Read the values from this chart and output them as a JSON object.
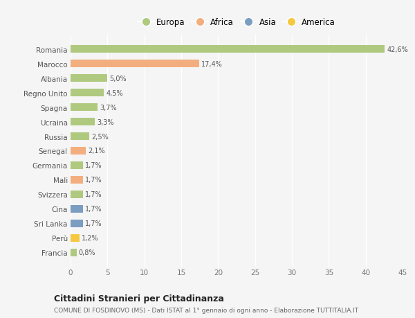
{
  "countries": [
    "Romania",
    "Marocco",
    "Albania",
    "Regno Unito",
    "Spagna",
    "Ucraina",
    "Russia",
    "Senegal",
    "Germania",
    "Mali",
    "Svizzera",
    "Cina",
    "Sri Lanka",
    "Perù",
    "Francia"
  ],
  "values": [
    42.6,
    17.4,
    5.0,
    4.5,
    3.7,
    3.3,
    2.5,
    2.1,
    1.7,
    1.7,
    1.7,
    1.7,
    1.7,
    1.2,
    0.8
  ],
  "labels": [
    "42,6%",
    "17,4%",
    "5,0%",
    "4,5%",
    "3,7%",
    "3,3%",
    "2,5%",
    "2,1%",
    "1,7%",
    "1,7%",
    "1,7%",
    "1,7%",
    "1,7%",
    "1,2%",
    "0,8%"
  ],
  "colors": [
    "#afc97f",
    "#f2ae7e",
    "#afc97f",
    "#afc97f",
    "#afc97f",
    "#afc97f",
    "#afc97f",
    "#f2ae7e",
    "#afc97f",
    "#f2ae7e",
    "#afc97f",
    "#7b9dc0",
    "#7b9dc0",
    "#f5c842",
    "#afc97f"
  ],
  "legend_labels": [
    "Europa",
    "Africa",
    "Asia",
    "America"
  ],
  "legend_colors": [
    "#afc97f",
    "#f2ae7e",
    "#7b9dc0",
    "#f5c842"
  ],
  "title": "Cittadini Stranieri per Cittadinanza",
  "subtitle": "COMUNE DI FOSDINOVO (MS) - Dati ISTAT al 1° gennaio di ogni anno - Elaborazione TUTTITALIA.IT",
  "xlim": [
    0,
    45
  ],
  "xticks": [
    0,
    5,
    10,
    15,
    20,
    25,
    30,
    35,
    40,
    45
  ],
  "background_color": "#f5f5f5",
  "grid_color": "#ffffff",
  "bar_height": 0.55
}
